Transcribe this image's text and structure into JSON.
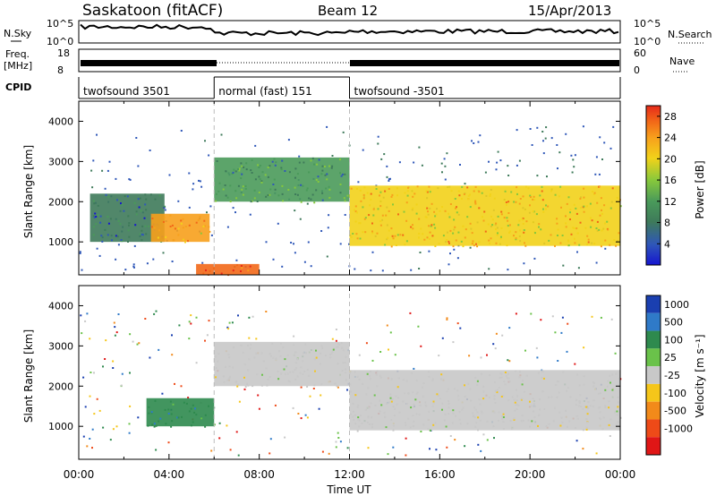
{
  "header": {
    "station": "Saskatoon (fitACF)",
    "beam": "Beam 12",
    "date": "15/Apr/2013"
  },
  "noise_panel": {
    "left_label": "N.Sky",
    "left_ticks": [
      "10^5",
      "10^0"
    ],
    "right_ticks": [
      "10^5",
      "10^0"
    ],
    "right_label": "N.Search"
  },
  "freq_panel": {
    "left_label_line1": "Freq.",
    "left_label_line2": "[MHz]",
    "left_ticks": [
      "18",
      "8"
    ],
    "right_ticks": [
      "60",
      "0"
    ],
    "right_label": "Nave"
  },
  "cpid": {
    "label": "CPID",
    "segments": [
      {
        "start": 0,
        "end": 6,
        "text": "twofsound 3501"
      },
      {
        "start": 6,
        "end": 12,
        "text": "normal (fast) 151"
      },
      {
        "start": 12,
        "end": 24,
        "text": "twofsound -3501"
      }
    ]
  },
  "colors": {
    "power_scale": [
      "#1515d0",
      "#2f57b8",
      "#3e7a5a",
      "#4a9a5a",
      "#86c83c",
      "#f2d21a",
      "#f7a01c",
      "#f26818",
      "#e62a1a"
    ],
    "velocity_scale": [
      "#1a3fb0",
      "#2f7ac8",
      "#2e8a4e",
      "#6ac24a",
      "#c8c8c8",
      "#f5c61a",
      "#f28a1a",
      "#ee4a18",
      "#e01616"
    ]
  },
  "chart_data": [
    {
      "type": "heatmap",
      "title": "",
      "ylabel": "Slant Range [km]",
      "xlabel": "",
      "xlim": [
        0,
        24
      ],
      "ylim": [
        180,
        4500
      ],
      "yticks": [
        "1000",
        "2000",
        "3000",
        "4000"
      ],
      "colorbar": {
        "label": "Power [dB]",
        "ticks": [
          "4",
          "8",
          "12",
          "16",
          "20",
          "24",
          "28"
        ],
        "range": [
          0,
          30
        ]
      },
      "regions": [
        {
          "t0": 0.5,
          "t1": 3.8,
          "r0": 1000,
          "r1": 2200,
          "level": 6
        },
        {
          "t0": 3.2,
          "t1": 5.8,
          "r0": 1000,
          "r1": 1700,
          "level": 22
        },
        {
          "t0": 5.2,
          "t1": 8.0,
          "r0": 180,
          "r1": 450,
          "level": 26
        },
        {
          "t0": 6.0,
          "t1": 12.0,
          "r0": 2000,
          "r1": 3100,
          "level": 10
        },
        {
          "t0": 12.0,
          "t1": 24.0,
          "r0": 900,
          "r1": 2400,
          "level": 20
        }
      ]
    },
    {
      "type": "heatmap",
      "title": "",
      "ylabel": "Slant Range [km]",
      "xlabel": "Time UT",
      "xlim": [
        0,
        24
      ],
      "ylim": [
        180,
        4500
      ],
      "xticks": [
        "00:00",
        "04:00",
        "08:00",
        "12:00",
        "16:00",
        "20:00",
        "00:00"
      ],
      "yticks": [
        "1000",
        "2000",
        "3000",
        "4000"
      ],
      "colorbar": {
        "label": "Velocity [m s⁻¹]",
        "ticks": [
          "1000",
          "500",
          "100",
          "25",
          "-25",
          "-100",
          "-500",
          "-1000"
        ]
      },
      "regions": [
        {
          "t0": 3.0,
          "t1": 6.0,
          "r0": 1000,
          "r1": 1700,
          "velocity": 150
        },
        {
          "t0": 6.0,
          "t1": 12.0,
          "r0": 2000,
          "r1": 3100,
          "velocity": 0
        },
        {
          "t0": 12.0,
          "t1": 24.0,
          "r0": 900,
          "r1": 2400,
          "velocity": 0
        }
      ]
    }
  ]
}
